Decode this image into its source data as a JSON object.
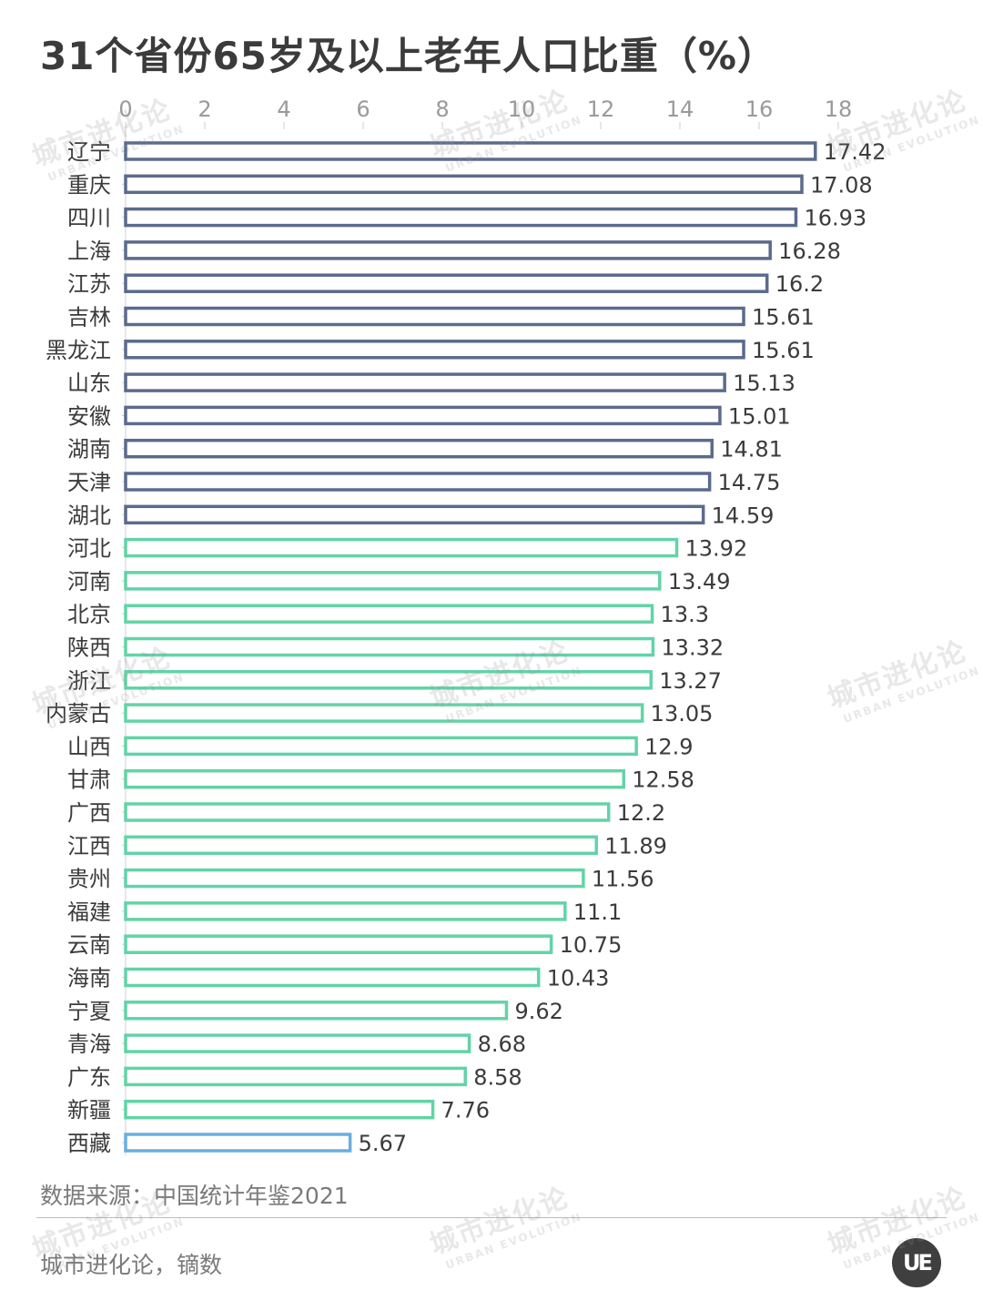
{
  "title": "31个省份65岁及以上老年人口比重（%）",
  "source": "数据来源：中国统计年鉴2021",
  "credit": "城市进化论，镝数",
  "logo_text": "UE",
  "watermark": {
    "main": "城市进化论",
    "sub": "URBAN EVOLUTION"
  },
  "colors": {
    "group_a": "#5b6b8c",
    "group_b": "#63d3a8",
    "group_c": "#6aaee0",
    "text": "#3b3b3b",
    "tick": "#9a9a9a"
  },
  "chart_data": {
    "type": "bar",
    "orientation": "horizontal",
    "title": "31个省份65岁及以上老年人口比重（%）",
    "xlabel": "",
    "ylabel": "",
    "xlim": [
      0,
      18
    ],
    "xticks": [
      0,
      2,
      4,
      6,
      8,
      10,
      12,
      14,
      16,
      18
    ],
    "tick_labels": [
      "0",
      "2",
      "4",
      "6",
      "8",
      "10",
      "12",
      "14",
      "16",
      "18"
    ],
    "axis_position": "top",
    "grid": false,
    "bar_style": "outlined",
    "categories": [
      "辽宁",
      "重庆",
      "四川",
      "上海",
      "江苏",
      "吉林",
      "黑龙江",
      "山东",
      "安徽",
      "湖南",
      "天津",
      "湖北",
      "河北",
      "河南",
      "北京",
      "陕西",
      "浙江",
      "内蒙古",
      "山西",
      "甘肃",
      "广西",
      "江西",
      "贵州",
      "福建",
      "云南",
      "海南",
      "宁夏",
      "青海",
      "广东",
      "新疆",
      "西藏"
    ],
    "values": [
      17.42,
      17.08,
      16.93,
      16.28,
      16.2,
      15.61,
      15.61,
      15.13,
      15.01,
      14.81,
      14.75,
      14.59,
      13.92,
      13.49,
      13.3,
      13.32,
      13.27,
      13.05,
      12.9,
      12.58,
      12.2,
      11.89,
      11.56,
      11.1,
      10.75,
      10.43,
      9.62,
      8.68,
      8.58,
      7.76,
      5.67
    ],
    "value_labels": [
      "17.42",
      "17.08",
      "16.93",
      "16.28",
      "16.2",
      "15.61",
      "15.61",
      "15.13",
      "15.01",
      "14.81",
      "14.75",
      "14.59",
      "13.92",
      "13.49",
      "13.3",
      "13.32",
      "13.27",
      "13.05",
      "12.9",
      "12.58",
      "12.2",
      "11.89",
      "11.56",
      "11.1",
      "10.75",
      "10.43",
      "9.62",
      "8.68",
      "8.58",
      "7.76",
      "5.67"
    ],
    "groups": [
      "a",
      "a",
      "a",
      "a",
      "a",
      "a",
      "a",
      "a",
      "a",
      "a",
      "a",
      "a",
      "b",
      "b",
      "b",
      "b",
      "b",
      "b",
      "b",
      "b",
      "b",
      "b",
      "b",
      "b",
      "b",
      "b",
      "b",
      "b",
      "b",
      "b",
      "c"
    ]
  }
}
